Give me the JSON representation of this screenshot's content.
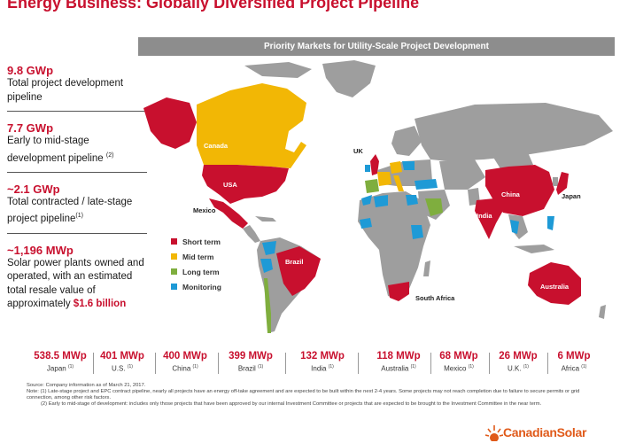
{
  "title": "Energy Business: Globally Diversified Project Pipeline",
  "map_header": "Priority Markets for Utility-Scale Project Development",
  "stats": [
    {
      "value": "9.8 GWp",
      "desc": "Total project development pipeline"
    },
    {
      "value": "7.7 GWp",
      "desc": "Early to mid-stage development pipeline",
      "note": "(2)"
    },
    {
      "value": "~2.1 GWp",
      "desc": "Total contracted / late-stage project pipeline",
      "note": "(1)"
    },
    {
      "value": "~1,196 MWp",
      "desc": "Solar power plants owned and operated, with an estimated total resale value of approximately",
      "highlight": "$1.6 billion"
    }
  ],
  "legend": [
    {
      "label": "Short term",
      "color": "#c8102e"
    },
    {
      "label": "Mid term",
      "color": "#f2b705"
    },
    {
      "label": "Long term",
      "color": "#7fae3e"
    },
    {
      "label": "Monitoring",
      "color": "#1e9ad6"
    }
  ],
  "map_labels": {
    "canada": "Canada",
    "usa": "USA",
    "mexico": "Mexico",
    "brazil": "Brazil",
    "uk": "UK",
    "china": "China",
    "japan": "Japan",
    "india": "India",
    "australia": "Australia",
    "south_africa": "South Africa"
  },
  "markets": [
    {
      "value": "538.5 MWp",
      "label": "Japan",
      "note": "(1)"
    },
    {
      "value": "401 MWp",
      "label": "U.S.",
      "note": "(1)"
    },
    {
      "value": "400 MWp",
      "label": "China",
      "note": "(1)"
    },
    {
      "value": "399 MWp",
      "label": "Brazil",
      "note": "(1)"
    },
    {
      "value": "132 MWp",
      "label": "India",
      "note": "(1)"
    },
    {
      "value": "118 MWp",
      "label": "Australia",
      "note": "(1)"
    },
    {
      "value": "68 MWp",
      "label": "Mexico",
      "note": "(1)"
    },
    {
      "value": "26 MWp",
      "label": "U.K.",
      "note": "(1)"
    },
    {
      "value": "6 MWp",
      "label": "Africa",
      "note": "(1)"
    }
  ],
  "footnotes": {
    "source": "Source: Company information as of March 21, 2017.",
    "note1": "Note: (1) Late-stage project and EPC contract pipeline, nearly all projects have an energy off-take agreement and are expected to be built within the next 2-4 years. Some projects may not reach completion due to failure to secure permits or grid connection, among other risk factors.",
    "note2": "(2) Early to mid-stage of development: includes only those projects that have been approved by our internal Investment Committee or projects that are expected to be brought to the Investment Committee in the near term."
  },
  "logo": "CanadianSolar",
  "colors": {
    "short_term": "#c8102e",
    "mid_term": "#f2b705",
    "long_term": "#7fae3e",
    "monitoring": "#1e9ad6",
    "land": "#9e9e9e"
  }
}
